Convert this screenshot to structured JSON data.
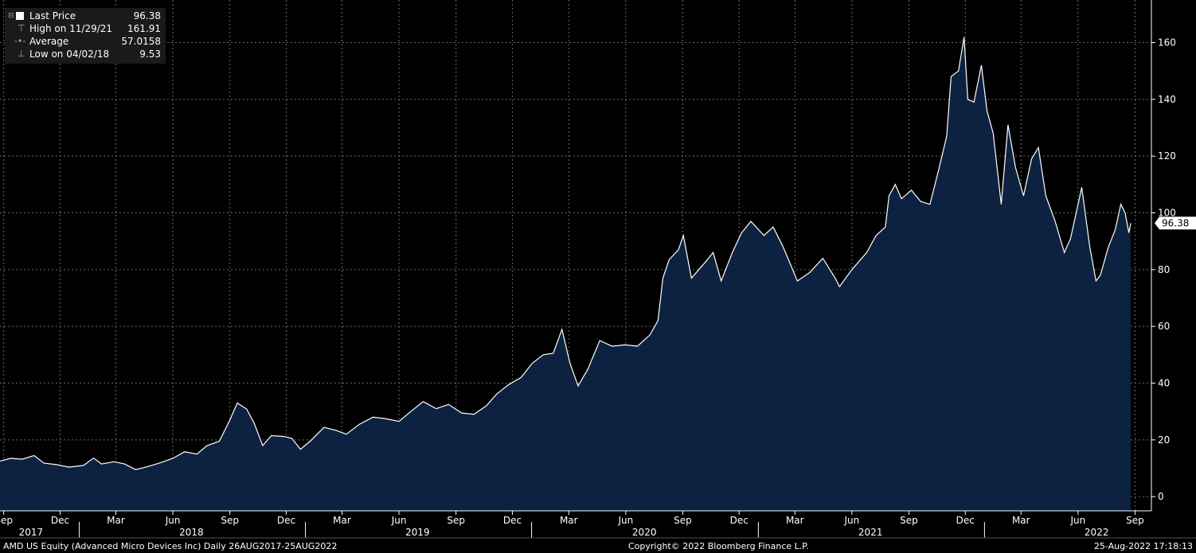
{
  "legend": {
    "last_price_label": "Last Price",
    "last_price_value": "96.38",
    "high_label": "High on 11/29/21",
    "high_value": "161.91",
    "average_label": "Average",
    "average_value": "57.0158",
    "low_label": "Low on 04/02/18",
    "low_value": "9.53"
  },
  "footer": {
    "security": "AMD US Equity (Advanced Micro Devices Inc)  Daily 26AUG2017-25AUG2022",
    "copyright": "Copyright© 2022 Bloomberg Finance L.P.",
    "timestamp": "25-Aug-2022 17:18:13"
  },
  "colors": {
    "background": "#000000",
    "area_fill": "#0d2240",
    "line": "#ffffff",
    "grid": "#6a6a6a"
  },
  "chart_data": {
    "type": "area",
    "series_name": "Last Price",
    "last_value_label": "96.38",
    "ylim": [
      -5,
      175
    ],
    "y_ticks": [
      0,
      20,
      40,
      60,
      80,
      100,
      120,
      140,
      160
    ],
    "y_axis_side": "right",
    "grid": true,
    "x_start": "2017-08-26",
    "x_end": "2022-08-25",
    "month_ticks": [
      {
        "date": "2017-09-01",
        "label": "Sep"
      },
      {
        "date": "2017-12-01",
        "label": "Dec"
      },
      {
        "date": "2018-03-01",
        "label": "Mar"
      },
      {
        "date": "2018-06-01",
        "label": "Jun"
      },
      {
        "date": "2018-09-01",
        "label": "Sep"
      },
      {
        "date": "2018-12-01",
        "label": "Dec"
      },
      {
        "date": "2019-03-01",
        "label": "Mar"
      },
      {
        "date": "2019-06-01",
        "label": "Jun"
      },
      {
        "date": "2019-09-01",
        "label": "Sep"
      },
      {
        "date": "2019-12-01",
        "label": "Dec"
      },
      {
        "date": "2020-03-01",
        "label": "Mar"
      },
      {
        "date": "2020-06-01",
        "label": "Jun"
      },
      {
        "date": "2020-09-01",
        "label": "Sep"
      },
      {
        "date": "2020-12-01",
        "label": "Dec"
      },
      {
        "date": "2021-03-01",
        "label": "Mar"
      },
      {
        "date": "2021-06-01",
        "label": "Jun"
      },
      {
        "date": "2021-09-01",
        "label": "Sep"
      },
      {
        "date": "2021-12-01",
        "label": "Dec"
      },
      {
        "date": "2022-03-01",
        "label": "Mar"
      },
      {
        "date": "2022-06-01",
        "label": "Jun"
      },
      {
        "date": "2022-09-01",
        "label": "Sep"
      }
    ],
    "year_labels": [
      {
        "date": "2017-10-15",
        "label": "2017"
      },
      {
        "date": "2018-07-01",
        "label": "2018"
      },
      {
        "date": "2019-07-01",
        "label": "2019"
      },
      {
        "date": "2020-07-01",
        "label": "2020"
      },
      {
        "date": "2021-07-01",
        "label": "2021"
      },
      {
        "date": "2022-07-01",
        "label": "2022"
      }
    ],
    "year_separators": [
      "2018-01-01",
      "2019-01-01",
      "2020-01-01",
      "2021-01-01",
      "2022-01-01"
    ],
    "points": [
      [
        "2017-08-26",
        12.5
      ],
      [
        "2017-09-12",
        13.5
      ],
      [
        "2017-10-01",
        13.2
      ],
      [
        "2017-10-20",
        14.5
      ],
      [
        "2017-11-05",
        11.8
      ],
      [
        "2017-11-25",
        11.3
      ],
      [
        "2017-12-15",
        10.4
      ],
      [
        "2018-01-08",
        11.0
      ],
      [
        "2018-01-24",
        13.6
      ],
      [
        "2018-02-06",
        11.5
      ],
      [
        "2018-02-26",
        12.3
      ],
      [
        "2018-03-15",
        11.5
      ],
      [
        "2018-04-02",
        9.53
      ],
      [
        "2018-04-20",
        10.5
      ],
      [
        "2018-05-10",
        11.8
      ],
      [
        "2018-06-01",
        13.5
      ],
      [
        "2018-06-20",
        15.8
      ],
      [
        "2018-07-10",
        15.0
      ],
      [
        "2018-07-26",
        18.0
      ],
      [
        "2018-08-15",
        19.5
      ],
      [
        "2018-09-01",
        27.0
      ],
      [
        "2018-09-13",
        33.0
      ],
      [
        "2018-09-28",
        30.9
      ],
      [
        "2018-10-10",
        26.0
      ],
      [
        "2018-10-24",
        18.0
      ],
      [
        "2018-11-07",
        21.5
      ],
      [
        "2018-11-28",
        21.2
      ],
      [
        "2018-12-10",
        20.5
      ],
      [
        "2018-12-24",
        16.7
      ],
      [
        "2019-01-10",
        19.8
      ],
      [
        "2019-01-31",
        24.4
      ],
      [
        "2019-02-20",
        23.3
      ],
      [
        "2019-03-08",
        22.0
      ],
      [
        "2019-03-29",
        25.5
      ],
      [
        "2019-04-20",
        28.0
      ],
      [
        "2019-05-10",
        27.5
      ],
      [
        "2019-06-01",
        26.5
      ],
      [
        "2019-06-20",
        30.0
      ],
      [
        "2019-07-10",
        33.5
      ],
      [
        "2019-07-31",
        31.0
      ],
      [
        "2019-08-20",
        32.5
      ],
      [
        "2019-09-10",
        29.5
      ],
      [
        "2019-09-30",
        29.0
      ],
      [
        "2019-10-20",
        32.0
      ],
      [
        "2019-11-05",
        36.0
      ],
      [
        "2019-11-25",
        39.5
      ],
      [
        "2019-12-15",
        42.0
      ],
      [
        "2020-01-02",
        47.0
      ],
      [
        "2020-01-20",
        50.0
      ],
      [
        "2020-02-05",
        50.5
      ],
      [
        "2020-02-19",
        58.9
      ],
      [
        "2020-03-03",
        47.0
      ],
      [
        "2020-03-16",
        39.0
      ],
      [
        "2020-04-01",
        45.0
      ],
      [
        "2020-04-20",
        55.0
      ],
      [
        "2020-05-10",
        53.0
      ],
      [
        "2020-05-31",
        53.5
      ],
      [
        "2020-06-20",
        53.0
      ],
      [
        "2020-07-10",
        57.0
      ],
      [
        "2020-07-23",
        62.0
      ],
      [
        "2020-07-31",
        77.0
      ],
      [
        "2020-08-10",
        83.5
      ],
      [
        "2020-08-25",
        87.0
      ],
      [
        "2020-09-02",
        92.0
      ],
      [
        "2020-09-15",
        77.0
      ],
      [
        "2020-10-05",
        82.0
      ],
      [
        "2020-10-20",
        86.0
      ],
      [
        "2020-11-02",
        76.0
      ],
      [
        "2020-11-20",
        86.0
      ],
      [
        "2020-12-05",
        93.0
      ],
      [
        "2020-12-20",
        97.0
      ],
      [
        "2021-01-10",
        92.0
      ],
      [
        "2021-01-25",
        95.0
      ],
      [
        "2021-02-10",
        88.0
      ],
      [
        "2021-03-05",
        76.0
      ],
      [
        "2021-03-25",
        79.0
      ],
      [
        "2021-04-15",
        84.0
      ],
      [
        "2021-05-05",
        77.0
      ],
      [
        "2021-05-12",
        74.0
      ],
      [
        "2021-06-01",
        80.0
      ],
      [
        "2021-06-25",
        86.0
      ],
      [
        "2021-07-10",
        92.0
      ],
      [
        "2021-07-25",
        95.0
      ],
      [
        "2021-07-31",
        106.0
      ],
      [
        "2021-08-10",
        110.0
      ],
      [
        "2021-08-20",
        105.0
      ],
      [
        "2021-09-05",
        108.0
      ],
      [
        "2021-09-20",
        104.0
      ],
      [
        "2021-10-05",
        103.0
      ],
      [
        "2021-10-20",
        116.0
      ],
      [
        "2021-11-01",
        127.0
      ],
      [
        "2021-11-08",
        148.0
      ],
      [
        "2021-11-20",
        150.0
      ],
      [
        "2021-11-29",
        161.91
      ],
      [
        "2021-12-05",
        140.0
      ],
      [
        "2021-12-15",
        139.0
      ],
      [
        "2021-12-27",
        152.0
      ],
      [
        "2022-01-05",
        136.0
      ],
      [
        "2022-01-15",
        128.0
      ],
      [
        "2022-01-28",
        103.0
      ],
      [
        "2022-02-08",
        131.0
      ],
      [
        "2022-02-20",
        116.0
      ],
      [
        "2022-03-05",
        106.0
      ],
      [
        "2022-03-18",
        119.0
      ],
      [
        "2022-03-29",
        123.0
      ],
      [
        "2022-04-10",
        106.0
      ],
      [
        "2022-04-25",
        97.0
      ],
      [
        "2022-05-10",
        86.0
      ],
      [
        "2022-05-20",
        91.0
      ],
      [
        "2022-06-01",
        103.0
      ],
      [
        "2022-06-07",
        109.0
      ],
      [
        "2022-06-20",
        88.0
      ],
      [
        "2022-06-30",
        76.0
      ],
      [
        "2022-07-07",
        78.0
      ],
      [
        "2022-07-20",
        88.0
      ],
      [
        "2022-07-31",
        94.0
      ],
      [
        "2022-08-09",
        103.0
      ],
      [
        "2022-08-16",
        100.0
      ],
      [
        "2022-08-22",
        93.0
      ],
      [
        "2022-08-25",
        96.38
      ]
    ]
  }
}
